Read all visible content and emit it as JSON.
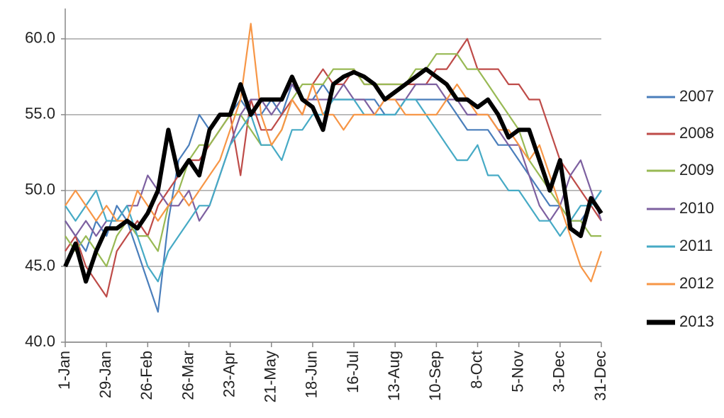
{
  "chart_data": {
    "type": "line",
    "x": [
      0,
      7,
      14,
      21,
      28,
      35,
      42,
      49,
      56,
      63,
      70,
      77,
      84,
      91,
      98,
      105,
      112,
      119,
      126,
      133,
      140,
      147,
      154,
      161,
      168,
      175,
      182,
      189,
      196,
      203,
      210,
      217,
      224,
      231,
      238,
      245,
      252,
      259,
      266,
      273,
      280,
      287,
      294,
      301,
      308,
      315,
      322,
      329,
      336,
      343,
      350,
      357,
      364
    ],
    "xlim": [
      0,
      364
    ],
    "xticks": [
      {
        "value": 0,
        "label": "1-Jan"
      },
      {
        "value": 28,
        "label": "29-Jan"
      },
      {
        "value": 56,
        "label": "26-Feb"
      },
      {
        "value": 84,
        "label": "26-Mar"
      },
      {
        "value": 112,
        "label": "23-Apr"
      },
      {
        "value": 140,
        "label": "21-May"
      },
      {
        "value": 168,
        "label": "18-Jun"
      },
      {
        "value": 196,
        "label": "16-Jul"
      },
      {
        "value": 224,
        "label": "13-Aug"
      },
      {
        "value": 252,
        "label": "10-Sep"
      },
      {
        "value": 280,
        "label": "8-Oct"
      },
      {
        "value": 308,
        "label": "5-Nov"
      },
      {
        "value": 336,
        "label": "3-Dec"
      },
      {
        "value": 364,
        "label": "31-Dec"
      }
    ],
    "ylim": [
      40,
      62
    ],
    "yticks": [
      {
        "value": 40,
        "label": "40.0"
      },
      {
        "value": 45,
        "label": "45.0"
      },
      {
        "value": 50,
        "label": "50.0"
      },
      {
        "value": 55,
        "label": "55.0"
      },
      {
        "value": 60,
        "label": "60.0"
      }
    ],
    "grid": true,
    "legend": "right",
    "series": [
      {
        "name": "2007",
        "color": "#4a7ebb",
        "values": [
          48,
          47,
          46,
          48,
          47,
          49,
          48,
          46,
          44,
          42,
          48,
          52,
          53,
          55,
          54,
          55,
          55,
          56,
          55,
          55,
          56,
          55,
          57,
          56,
          56,
          57,
          56,
          56,
          56,
          56,
          56,
          55,
          55,
          56,
          56,
          56,
          56,
          56,
          55,
          54,
          54,
          54,
          53,
          53,
          52,
          51,
          50,
          49,
          49,
          48,
          48,
          49,
          50
        ]
      },
      {
        "name": "2008",
        "color": "#be4b48",
        "values": [
          46,
          47,
          45,
          44,
          43,
          46,
          47,
          48,
          47,
          49,
          50,
          51,
          52,
          52,
          53,
          54,
          55,
          51,
          56,
          54,
          54,
          55,
          56,
          55,
          57,
          58,
          57,
          57,
          58,
          57,
          57,
          57,
          57,
          57,
          57,
          57,
          58,
          58,
          59,
          60,
          58,
          58,
          58,
          57,
          57,
          56,
          56,
          54,
          52,
          51,
          50,
          49,
          48
        ]
      },
      {
        "name": "2009",
        "color": "#98b954",
        "values": [
          47,
          46,
          47,
          46,
          45,
          47,
          48,
          47,
          47,
          46,
          49,
          50,
          52,
          53,
          53,
          54,
          55,
          55,
          54,
          53,
          53,
          54,
          56,
          57,
          57,
          57,
          58,
          58,
          58,
          57,
          57,
          57,
          57,
          57,
          58,
          58,
          59,
          59,
          59,
          58,
          58,
          57,
          56,
          55,
          54,
          52,
          51,
          50,
          49,
          48,
          48,
          47,
          47
        ]
      },
      {
        "name": "2010",
        "color": "#7d60a0",
        "values": [
          48,
          47,
          48,
          47,
          48,
          48,
          49,
          49,
          51,
          50,
          49,
          49,
          50,
          48,
          49,
          51,
          53,
          55,
          56,
          56,
          55,
          56,
          57,
          56,
          56,
          56,
          56,
          57,
          56,
          56,
          55,
          56,
          56,
          56,
          57,
          57,
          57,
          56,
          56,
          55,
          55,
          55,
          54,
          53,
          53,
          51,
          49,
          48,
          49,
          51,
          52,
          50,
          48
        ]
      },
      {
        "name": "2011",
        "color": "#46aac5",
        "values": [
          49,
          48,
          49,
          50,
          48,
          48,
          49,
          47,
          45,
          44,
          46,
          47,
          48,
          49,
          49,
          51,
          53,
          54,
          55,
          53,
          53,
          52,
          54,
          54,
          55,
          55,
          56,
          56,
          56,
          55,
          55,
          55,
          55,
          56,
          56,
          55,
          54,
          53,
          52,
          52,
          53,
          51,
          51,
          50,
          50,
          49,
          48,
          48,
          47,
          48,
          49,
          49,
          50
        ]
      },
      {
        "name": "2012",
        "color": "#f79646",
        "values": [
          49,
          50,
          49,
          48,
          49,
          48,
          48,
          50,
          49,
          48,
          49,
          50,
          49,
          50,
          51,
          52,
          54,
          56,
          61,
          55,
          53,
          54,
          56,
          55,
          57,
          55,
          55,
          54,
          55,
          55,
          55,
          56,
          56,
          55,
          55,
          55,
          55,
          56,
          57,
          56,
          55,
          55,
          54,
          54,
          53,
          52,
          53,
          51,
          49,
          47,
          45,
          44,
          46
        ]
      },
      {
        "name": "2013",
        "color": "#000000",
        "values": [
          45,
          46.5,
          44,
          46,
          47.5,
          47.5,
          48,
          47.5,
          48.5,
          50,
          54,
          51,
          52,
          51,
          54,
          55,
          55,
          57,
          55,
          56,
          56,
          56,
          57.5,
          56,
          55.5,
          54,
          57,
          57.5,
          57.8,
          57.5,
          57,
          56,
          56.5,
          57,
          57.5,
          58,
          57.5,
          57,
          56,
          56,
          55.5,
          56,
          55,
          53.5,
          54,
          54,
          52,
          50,
          52,
          47.5,
          47,
          49.5,
          48.5
        ]
      }
    ]
  }
}
